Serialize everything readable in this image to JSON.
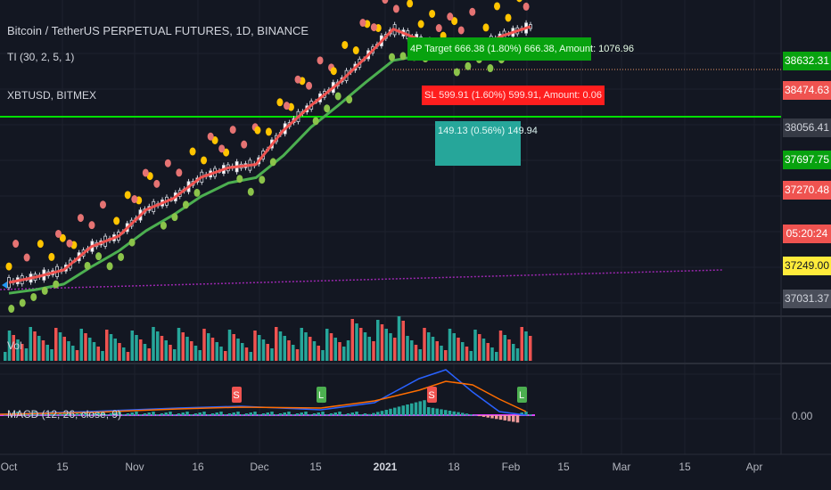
{
  "header": {
    "symbol_line": "Bitcoin / TetherUS PERPETUAL FUTURES, 1D, BINANCE",
    "indicator_line": "TI (30, 2, 5, 1)",
    "compare_line": "XBTUSD, BITMEX",
    "volume_label": "Vol",
    "macd_label": "MACD (12, 26, close, 9)"
  },
  "price_scale": {
    "tags": [
      {
        "text": "38632.31",
        "bg": "#08a20f",
        "fg": "#ffffff"
      },
      {
        "text": "38474.63",
        "bg": "#ef5350",
        "fg": "#ffffff"
      },
      {
        "text": "38056.41",
        "bg": "#363a45",
        "fg": "#d1d4dc"
      },
      {
        "text": "37697.75",
        "bg": "#08a20f",
        "fg": "#ffffff"
      },
      {
        "text": "37270.48",
        "bg": "#ef5350",
        "fg": "#ffffff"
      },
      {
        "text": "05:20:24",
        "bg": "#ef5350",
        "fg": "#ffffff"
      },
      {
        "text": "37249.00",
        "bg": "#ffeb3b",
        "fg": "#131722"
      },
      {
        "text": "37031.37",
        "bg": "#4a4e5a",
        "fg": "#d1d4dc"
      }
    ],
    "macd_zero": "0.00"
  },
  "trade_labels": [
    {
      "text": "4P Target 666.38 (1.80%) 666.38, Amount: 1076.96",
      "bg": "#08a20f"
    },
    {
      "text": "SL 599.91 (1.60%) 599.91, Amount: 0.06",
      "bg": "#ff1e1e"
    },
    {
      "text": "149.13 (0.56%) 149.94",
      "bg": "#26a69a"
    }
  ],
  "macd_signals": [
    "S",
    "L",
    "S",
    "L"
  ],
  "colors": {
    "background": "#131722",
    "grid": "#1e222d",
    "bull_volume": "#26a69a",
    "bear_volume": "#ef5350",
    "red_ma": "#ef5350",
    "green_ma": "#4caf50",
    "horizontal_line": "#00e000",
    "yellow_dot": "#ffc400",
    "red_dot": "#e57373",
    "green_dot": "#8bc34a",
    "macd_line": "#2962ff",
    "signal_line": "#ff6d00",
    "histogram_zero": "#e040fb"
  },
  "chart_data": {
    "type": "line",
    "time_axis": [
      "Oct",
      "15",
      "Nov",
      "16",
      "Dec",
      "15",
      "2021",
      "18",
      "Feb",
      "15",
      "Mar",
      "15",
      "Apr"
    ],
    "series": [
      {
        "name": "",
        "values": [
          10800,
          11100,
          11500,
          12900,
          13600,
          15500,
          16400,
          18200,
          19100,
          19400,
          23000,
          26000,
          29000,
          33000,
          38000,
          36000,
          33500,
          34500,
          36800,
          38474.63
        ]
      },
      {
        "name": "",
        "values": [
          10700,
          10900,
          11200,
          12200,
          13200,
          14600,
          15800,
          17300,
          18500,
          19000,
          21200,
          24400,
          27200,
          30500,
          34000,
          34800,
          34200,
          34300,
          35600,
          37270.48
        ]
      }
    ],
    "price_levels": [
      38632.31,
      38474.63,
      38056.41,
      37697.75,
      37270.48,
      37249.0,
      37031.37
    ]
  }
}
